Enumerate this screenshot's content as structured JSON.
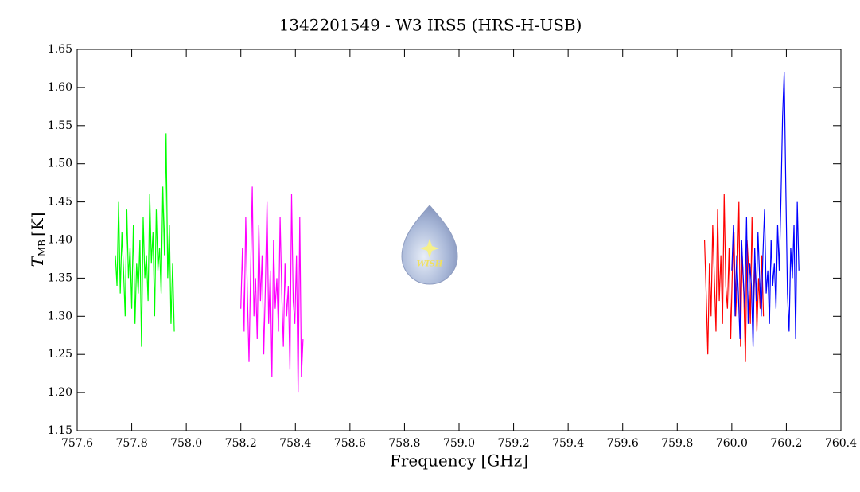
{
  "chart_data": {
    "type": "line",
    "title": "1342201549 - W3 IRS5 (HRS-H-USB)",
    "xlabel": "Frequency [GHz]",
    "ylabel": "T",
    "ylabel_sub": "MB",
    "ylabel_unit": "[K]",
    "logo_text": "WISH",
    "xlim": [
      757.6,
      760.4
    ],
    "ylim": [
      1.15,
      1.65
    ],
    "xticks": [
      757.6,
      757.8,
      {
        "value": 758,
        "label": "758.0"
      },
      758.2,
      758.4,
      758.6,
      758.8,
      {
        "value": 759,
        "label": "759.0"
      },
      759.2,
      759.4,
      759.6,
      759.8,
      {
        "value": 760,
        "label": "760.0"
      },
      760.2,
      760.4
    ],
    "yticks": [
      1.15,
      {
        "value": 1.2,
        "label": "1.20"
      },
      1.25,
      {
        "value": 1.3,
        "label": "1.30"
      },
      1.35,
      {
        "value": 1.4,
        "label": "1.40"
      },
      1.45,
      {
        "value": 1.5,
        "label": "1.50"
      },
      1.55,
      {
        "value": 1.6,
        "label": "1.60"
      },
      1.65
    ],
    "series": [
      {
        "color": "#00ff00",
        "x": [
          757.74,
          757.746,
          757.752,
          757.758,
          757.764,
          757.77,
          757.776,
          757.782,
          757.788,
          757.794,
          757.8,
          757.806,
          757.812,
          757.818,
          757.824,
          757.83,
          757.836,
          757.842,
          757.848,
          757.854,
          757.86,
          757.866,
          757.872,
          757.878,
          757.884,
          757.89,
          757.896,
          757.902,
          757.908,
          757.914,
          757.92,
          757.926,
          757.932,
          757.938,
          757.944,
          757.95,
          757.956
        ],
        "values": [
          1.38,
          1.34,
          1.45,
          1.33,
          1.41,
          1.36,
          1.3,
          1.44,
          1.35,
          1.39,
          1.31,
          1.42,
          1.29,
          1.37,
          1.33,
          1.4,
          1.26,
          1.43,
          1.35,
          1.38,
          1.32,
          1.46,
          1.37,
          1.41,
          1.3,
          1.44,
          1.36,
          1.39,
          1.33,
          1.47,
          1.38,
          1.54,
          1.35,
          1.42,
          1.29,
          1.37,
          1.28
        ]
      },
      {
        "color": "#ff00ff",
        "x": [
          758.2,
          758.206,
          758.212,
          758.218,
          758.224,
          758.23,
          758.236,
          758.242,
          758.248,
          758.254,
          758.26,
          758.266,
          758.272,
          758.278,
          758.284,
          758.29,
          758.296,
          758.302,
          758.308,
          758.314,
          758.32,
          758.326,
          758.332,
          758.338,
          758.344,
          758.35,
          758.356,
          758.362,
          758.368,
          758.374,
          758.38,
          758.386,
          758.392,
          758.398,
          758.404,
          758.41,
          758.416,
          758.422,
          758.428
        ],
        "values": [
          1.31,
          1.39,
          1.28,
          1.43,
          1.33,
          1.24,
          1.36,
          1.47,
          1.3,
          1.35,
          1.27,
          1.42,
          1.32,
          1.38,
          1.25,
          1.34,
          1.45,
          1.29,
          1.36,
          1.22,
          1.4,
          1.31,
          1.35,
          1.28,
          1.43,
          1.33,
          1.26,
          1.37,
          1.3,
          1.34,
          1.23,
          1.46,
          1.32,
          1.29,
          1.38,
          1.2,
          1.43,
          1.22,
          1.27
        ]
      },
      {
        "color": "#ff0000",
        "x": [
          759.9,
          759.906,
          759.912,
          759.918,
          759.924,
          759.93,
          759.936,
          759.942,
          759.948,
          759.954,
          759.96,
          759.966,
          759.972,
          759.978,
          759.984,
          759.99,
          759.996,
          760.002,
          760.008,
          760.014,
          760.02,
          760.026,
          760.032,
          760.038,
          760.044,
          760.05,
          760.056,
          760.062,
          760.068,
          760.074,
          760.08,
          760.086,
          760.092,
          760.098,
          760.104,
          760.11,
          760.116
        ],
        "values": [
          1.4,
          1.33,
          1.25,
          1.37,
          1.3,
          1.42,
          1.35,
          1.28,
          1.44,
          1.32,
          1.38,
          1.29,
          1.46,
          1.34,
          1.31,
          1.39,
          1.27,
          1.36,
          1.41,
          1.3,
          1.35,
          1.45,
          1.26,
          1.38,
          1.33,
          1.24,
          1.4,
          1.36,
          1.29,
          1.43,
          1.32,
          1.37,
          1.28,
          1.35,
          1.31,
          1.38,
          1.3
        ]
      },
      {
        "color": "#0000ff",
        "x": [
          760,
          760.006,
          760.012,
          760.018,
          760.024,
          760.03,
          760.036,
          760.042,
          760.048,
          760.054,
          760.06,
          760.066,
          760.072,
          760.078,
          760.084,
          760.09,
          760.096,
          760.102,
          760.108,
          760.114,
          760.12,
          760.126,
          760.132,
          760.138,
          760.144,
          760.15,
          760.156,
          760.162,
          760.168,
          760.174,
          760.18,
          760.186,
          760.192,
          760.198,
          760.204,
          760.21,
          760.216,
          760.222,
          760.228,
          760.234,
          760.24,
          760.246
        ],
        "values": [
          1.36,
          1.42,
          1.3,
          1.38,
          1.33,
          1.27,
          1.4,
          1.35,
          1.31,
          1.43,
          1.29,
          1.37,
          1.34,
          1.26,
          1.39,
          1.32,
          1.41,
          1.35,
          1.3,
          1.38,
          1.44,
          1.33,
          1.36,
          1.29,
          1.4,
          1.34,
          1.37,
          1.31,
          1.42,
          1.36,
          1.45,
          1.56,
          1.62,
          1.47,
          1.33,
          1.28,
          1.39,
          1.35,
          1.42,
          1.27,
          1.45,
          1.36
        ]
      }
    ]
  }
}
